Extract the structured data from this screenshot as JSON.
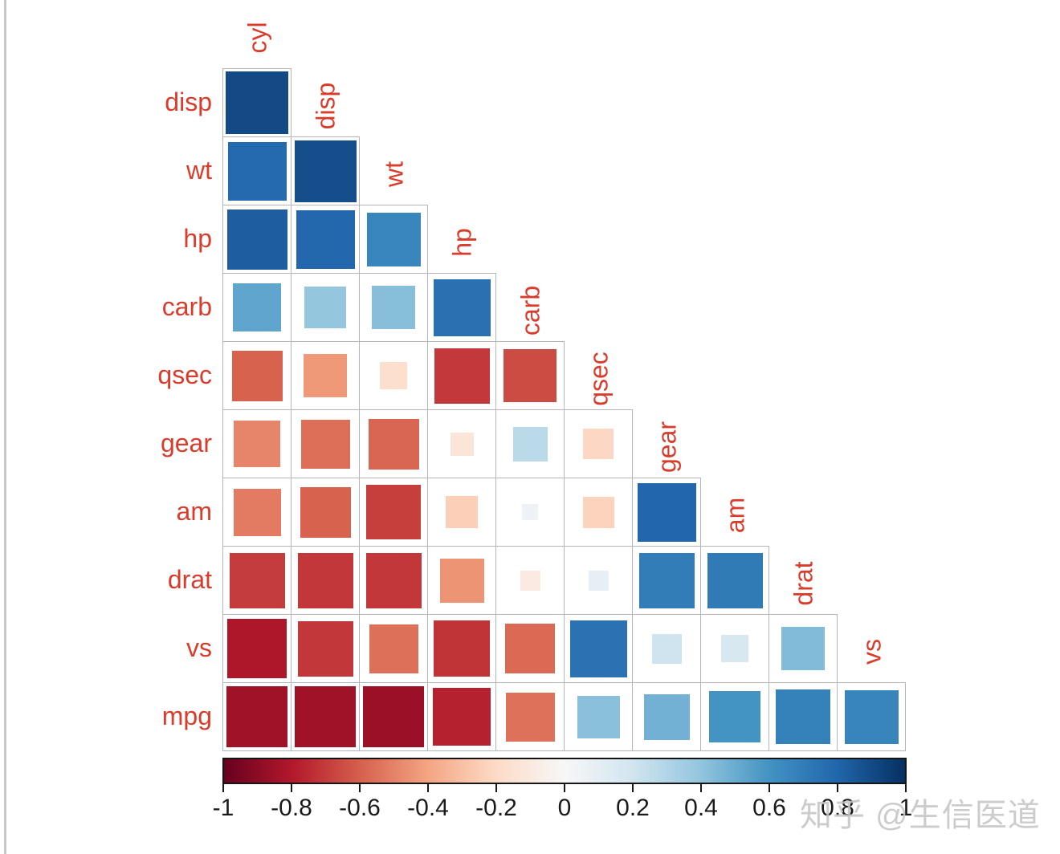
{
  "chart_data": {
    "type": "heatmap",
    "subtype": "lower-triangle-correlation-matrix-squares",
    "variables": [
      "cyl",
      "disp",
      "wt",
      "hp",
      "carb",
      "qsec",
      "gear",
      "am",
      "drat",
      "vs",
      "mpg"
    ],
    "row_labels": [
      "disp",
      "wt",
      "hp",
      "carb",
      "qsec",
      "gear",
      "am",
      "drat",
      "vs",
      "mpg"
    ],
    "diagonal_labels": [
      "cyl",
      "disp",
      "wt",
      "hp",
      "carb",
      "qsec",
      "gear",
      "am",
      "drat",
      "vs"
    ],
    "matrix": [
      [
        0.902
      ],
      [
        0.782,
        0.888
      ],
      [
        0.832,
        0.791,
        0.659
      ],
      [
        0.527,
        0.395,
        0.428,
        0.75
      ],
      [
        -0.591,
        -0.434,
        -0.175,
        -0.708,
        -0.656
      ],
      [
        -0.493,
        -0.556,
        -0.583,
        -0.126,
        0.274,
        -0.213
      ],
      [
        -0.523,
        -0.591,
        -0.692,
        -0.243,
        0.058,
        -0.23,
        0.794
      ],
      [
        -0.7,
        -0.71,
        -0.712,
        -0.449,
        -0.091,
        0.091,
        0.7,
        0.713
      ],
      [
        -0.811,
        -0.71,
        -0.555,
        -0.723,
        -0.57,
        0.745,
        0.206,
        0.168,
        0.44
      ],
      [
        -0.852,
        -0.848,
        -0.868,
        -0.776,
        -0.551,
        0.419,
        0.48,
        0.6,
        0.681,
        0.664
      ]
    ],
    "value_range": [
      -1,
      1
    ],
    "encoding": "square side proportional to sqrt(|r|); color diverging red (negative) to blue (positive)",
    "legend_position": "bottom",
    "grid": true
  },
  "colorbar": {
    "min": -1,
    "max": 1,
    "ticks": [
      "-1",
      "-0.8",
      "-0.6",
      "-0.4",
      "-0.2",
      "0",
      "0.2",
      "0.4",
      "0.6",
      "0.8",
      "1"
    ]
  },
  "watermark": {
    "text": "知乎 @生信医道"
  },
  "colors": {
    "palette_neg_to_pos": [
      "#67001F",
      "#B2182B",
      "#D6604D",
      "#F4A582",
      "#FDDBC7",
      "#F7F7F7",
      "#D1E5F0",
      "#92C5DE",
      "#4393C3",
      "#2166AC",
      "#053061"
    ],
    "label_red": "#d93c2b",
    "grid_line": "#b4b4bc",
    "tick_text": "#1a1a1a",
    "colorbar_border": "#141414",
    "watermark_gray": "#c5c5c5",
    "page_border": "#c8c8cc",
    "background": "#ffffff"
  }
}
